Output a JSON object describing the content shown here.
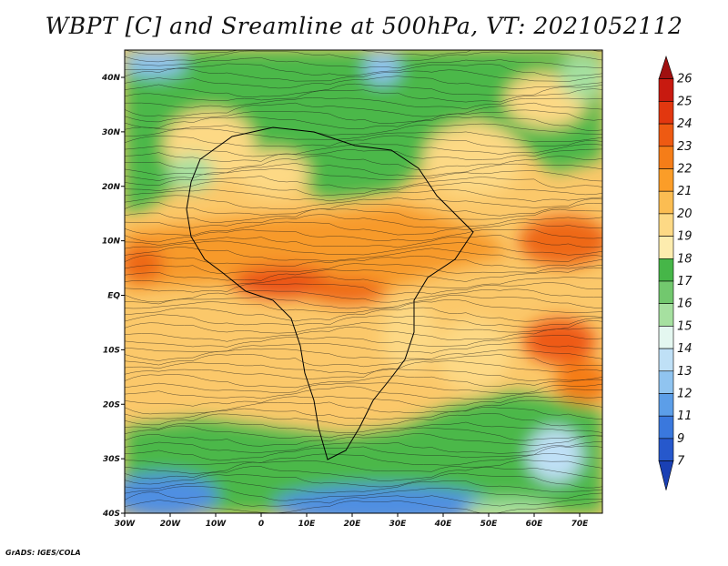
{
  "title": "WBPT [C] and Sreamline at 500hPa, VT: 2021052112",
  "credit": "GrADS: IGES/COLA",
  "map": {
    "lon_labels": [
      "30W",
      "20W",
      "10W",
      "0",
      "10E",
      "20E",
      "30E",
      "40E",
      "50E",
      "60E",
      "70E"
    ],
    "lat_labels": [
      "40N",
      "30N",
      "20N",
      "10N",
      "EQ",
      "10S",
      "20S",
      "30S",
      "40S"
    ]
  },
  "colorbar": {
    "labels": [
      "26",
      "25",
      "24",
      "23",
      "22",
      "21",
      "20",
      "19",
      "18",
      "17",
      "16",
      "15",
      "14",
      "13",
      "12",
      "11",
      "9",
      "7"
    ],
    "colors": [
      "#a01010",
      "#c81a10",
      "#e2370f",
      "#ee5a12",
      "#f57d18",
      "#fb9d28",
      "#fbbd52",
      "#fdd985",
      "#fdecae",
      "#46b648",
      "#72c86e",
      "#a6e0a0",
      "#e4f7f0",
      "#bfe0f6",
      "#90c4f0",
      "#5c9ee8",
      "#3a78dd",
      "#2658cc",
      "#1a40b4"
    ]
  }
}
